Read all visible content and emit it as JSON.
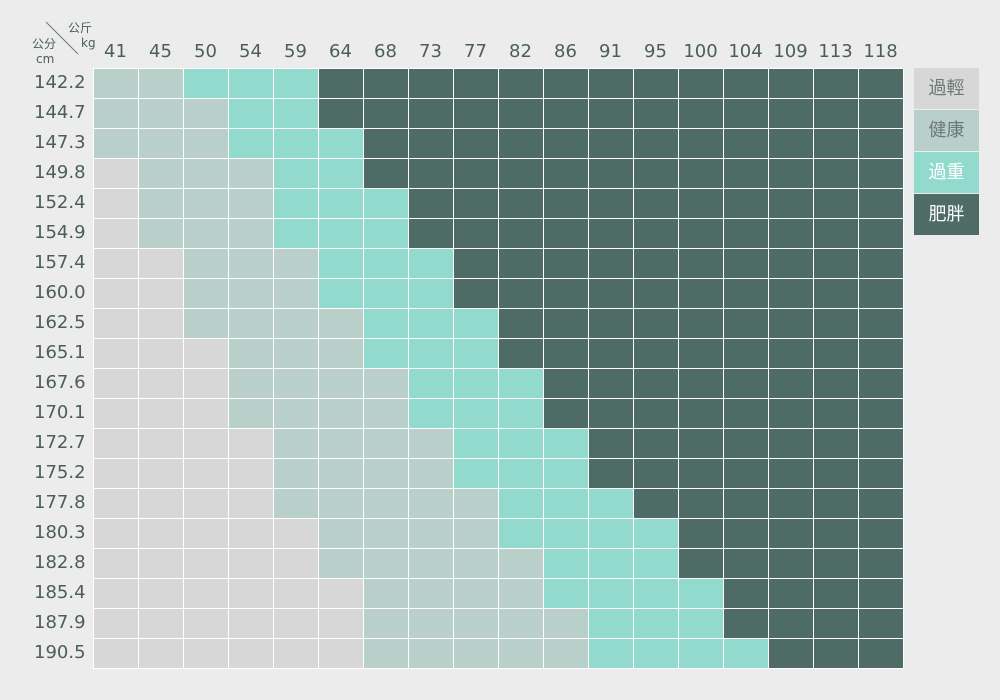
{
  "corner": {
    "weight_unit_zh": "公斤",
    "weight_unit": "kg",
    "height_unit_zh": "公分",
    "height_unit": "cm"
  },
  "colors": {
    "過輕": "#d7d7d7",
    "健康": "#b9cfca",
    "過重": "#92dace",
    "肥胖": "#4f6b65",
    "text": "#4b5e58",
    "background": "#ececec"
  },
  "legend": [
    {
      "label": "過輕",
      "color": "#d7d7d7",
      "text_color": "#6b7a76"
    },
    {
      "label": "健康",
      "color": "#b9cfca",
      "text_color": "#6b7a76"
    },
    {
      "label": "過重",
      "color": "#92dace",
      "text_color": "#ffffff"
    },
    {
      "label": "肥胖",
      "color": "#4f6b65",
      "text_color": "#ffffff"
    }
  ],
  "chart_data": {
    "type": "heatmap",
    "title": "",
    "xlabel": "kg",
    "ylabel": "cm",
    "x": [
      "41",
      "45",
      "50",
      "54",
      "59",
      "64",
      "68",
      "73",
      "77",
      "82",
      "86",
      "91",
      "95",
      "100",
      "104",
      "109",
      "113",
      "118"
    ],
    "y": [
      "142.2",
      "144.7",
      "147.3",
      "149.8",
      "152.4",
      "154.9",
      "157.4",
      "160.0",
      "162.5",
      "165.1",
      "167.6",
      "170.1",
      "172.7",
      "175.2",
      "177.8",
      "180.3",
      "182.8",
      "185.4",
      "187.9",
      "190.5"
    ],
    "categories": [
      "過輕",
      "健康",
      "過重",
      "肥胖"
    ],
    "values": [
      [
        1,
        1,
        2,
        2,
        2,
        3,
        3,
        3,
        3,
        3,
        3,
        3,
        3,
        3,
        3,
        3,
        3,
        3
      ],
      [
        1,
        1,
        1,
        2,
        2,
        3,
        3,
        3,
        3,
        3,
        3,
        3,
        3,
        3,
        3,
        3,
        3,
        3
      ],
      [
        1,
        1,
        1,
        2,
        2,
        2,
        3,
        3,
        3,
        3,
        3,
        3,
        3,
        3,
        3,
        3,
        3,
        3
      ],
      [
        0,
        1,
        1,
        1,
        2,
        2,
        3,
        3,
        3,
        3,
        3,
        3,
        3,
        3,
        3,
        3,
        3,
        3
      ],
      [
        0,
        1,
        1,
        1,
        2,
        2,
        2,
        3,
        3,
        3,
        3,
        3,
        3,
        3,
        3,
        3,
        3,
        3
      ],
      [
        0,
        1,
        1,
        1,
        2,
        2,
        2,
        3,
        3,
        3,
        3,
        3,
        3,
        3,
        3,
        3,
        3,
        3
      ],
      [
        0,
        0,
        1,
        1,
        1,
        2,
        2,
        2,
        3,
        3,
        3,
        3,
        3,
        3,
        3,
        3,
        3,
        3
      ],
      [
        0,
        0,
        1,
        1,
        1,
        2,
        2,
        2,
        3,
        3,
        3,
        3,
        3,
        3,
        3,
        3,
        3,
        3
      ],
      [
        0,
        0,
        1,
        1,
        1,
        1,
        2,
        2,
        2,
        3,
        3,
        3,
        3,
        3,
        3,
        3,
        3,
        3
      ],
      [
        0,
        0,
        0,
        1,
        1,
        1,
        2,
        2,
        2,
        3,
        3,
        3,
        3,
        3,
        3,
        3,
        3,
        3
      ],
      [
        0,
        0,
        0,
        1,
        1,
        1,
        1,
        2,
        2,
        2,
        3,
        3,
        3,
        3,
        3,
        3,
        3,
        3
      ],
      [
        0,
        0,
        0,
        1,
        1,
        1,
        1,
        2,
        2,
        2,
        3,
        3,
        3,
        3,
        3,
        3,
        3,
        3
      ],
      [
        0,
        0,
        0,
        0,
        1,
        1,
        1,
        1,
        2,
        2,
        2,
        3,
        3,
        3,
        3,
        3,
        3,
        3
      ],
      [
        0,
        0,
        0,
        0,
        1,
        1,
        1,
        1,
        2,
        2,
        2,
        3,
        3,
        3,
        3,
        3,
        3,
        3
      ],
      [
        0,
        0,
        0,
        0,
        1,
        1,
        1,
        1,
        1,
        2,
        2,
        2,
        3,
        3,
        3,
        3,
        3,
        3
      ],
      [
        0,
        0,
        0,
        0,
        0,
        1,
        1,
        1,
        1,
        2,
        2,
        2,
        2,
        3,
        3,
        3,
        3,
        3
      ],
      [
        0,
        0,
        0,
        0,
        0,
        1,
        1,
        1,
        1,
        1,
        2,
        2,
        2,
        3,
        3,
        3,
        3,
        3
      ],
      [
        0,
        0,
        0,
        0,
        0,
        0,
        1,
        1,
        1,
        1,
        2,
        2,
        2,
        2,
        3,
        3,
        3,
        3
      ],
      [
        0,
        0,
        0,
        0,
        0,
        0,
        1,
        1,
        1,
        1,
        1,
        2,
        2,
        2,
        3,
        3,
        3,
        3
      ],
      [
        0,
        0,
        0,
        0,
        0,
        0,
        1,
        1,
        1,
        1,
        1,
        2,
        2,
        2,
        2,
        3,
        3,
        3
      ]
    ]
  }
}
